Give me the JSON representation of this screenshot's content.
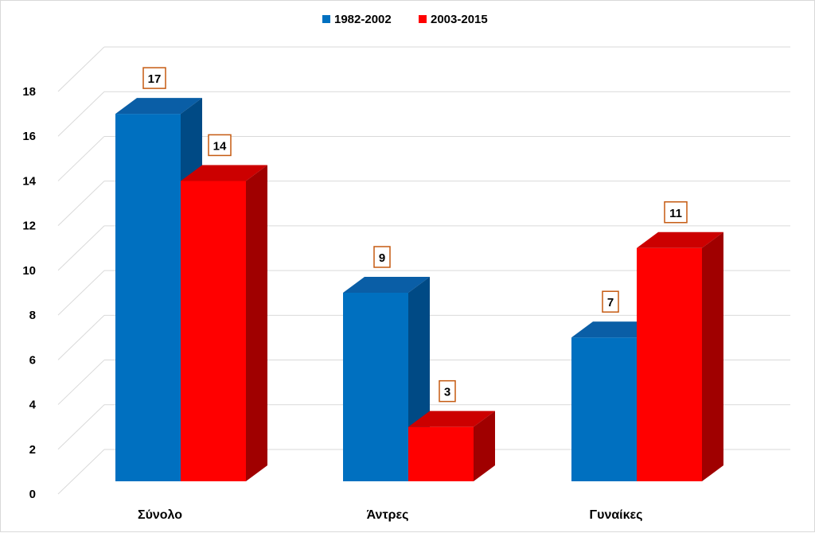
{
  "chart_data": {
    "type": "bar",
    "categories": [
      "Σύνολο",
      "Άντρες",
      "Γυναίκες"
    ],
    "series": [
      {
        "name": "1982-2002",
        "values": [
          17,
          9,
          7
        ],
        "color": "#0070c0",
        "top_color": "#0a5ea6",
        "side_color": "#004a85"
      },
      {
        "name": "2003-2015",
        "values": [
          14,
          3,
          11
        ],
        "color": "#ff0000",
        "top_color": "#cc0000",
        "side_color": "#a00000"
      }
    ],
    "ylim": [
      0,
      18
    ],
    "yticks": [
      0,
      2,
      4,
      6,
      8,
      10,
      12,
      14,
      16,
      18
    ],
    "grid": true,
    "legend": "top-center",
    "data_label_border_color": "#c55a11"
  }
}
